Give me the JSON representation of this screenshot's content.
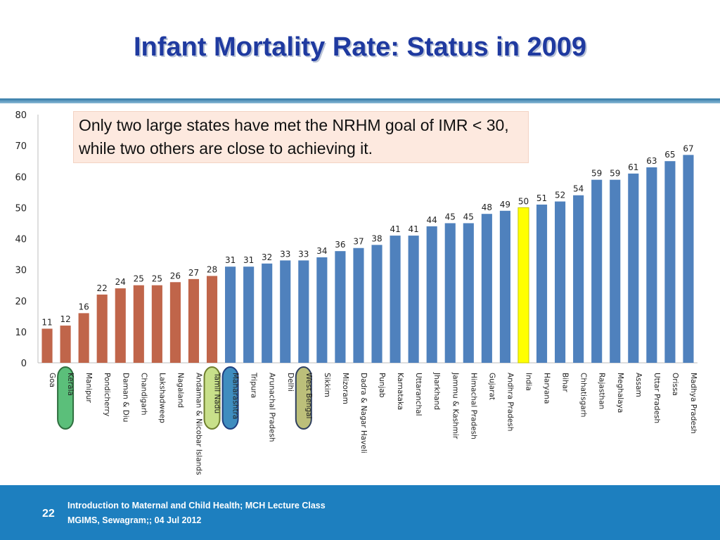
{
  "slide": {
    "title": "Infant Mortality Rate: Status in 2009",
    "annotation": "Only two large states have met the NRHM goal of IMR < 30, while two others are close to achieving it.",
    "footer_line1": "Introduction to Maternal and Child Health; MCH Lecture Class",
    "footer_line2": "MGIMS, Sewagram;; 04 Jul  2012",
    "page_number": "22"
  },
  "colors": {
    "below_goal": "#c0654a",
    "above_goal": "#4f81bd",
    "india": "#ffff00",
    "kerala_highlight": "#5bbf7a",
    "tamil_nadu_highlight": "#c8e08a",
    "maharashtra_highlight": "#3f8dbf",
    "west_bengal_highlight": "#bcbf7a",
    "title": "#1f3aa0",
    "footer": "#1d7fbf"
  },
  "chart_data": {
    "type": "bar",
    "title": "",
    "xlabel": "",
    "ylabel": "",
    "ylim": [
      0,
      80
    ],
    "yticks": [
      0,
      10,
      20,
      30,
      40,
      50,
      60,
      70,
      80
    ],
    "grid": false,
    "legend": "none",
    "categories": [
      "Goa",
      "Kerala",
      "Manipur",
      "Pondicherry",
      "Daman & Diu",
      "Chandigarh",
      "Lakshadweep",
      "Nagaland",
      "Andaman & Nicobar Islands",
      "Tamil Nadu",
      "Maharashtra",
      "Tripura",
      "Arunachal Pradesh",
      "Delhi",
      "West Bengal",
      "Sikkim",
      "Mizoram",
      "Dadra & Nagar Haveli",
      "Punjab",
      "Karnataka",
      "Uttaranchal",
      "Jharkhand",
      "Jammu & Kashmir",
      "Himachal Pradesh",
      "Gujarat",
      "Andhra Pradesh",
      "India",
      "Haryana",
      "Bihar",
      "Chhatisgarh",
      "Rajasthan",
      "Meghalaya",
      "Assam",
      "Uttar Pradesh",
      "Orissa",
      "Madhya Pradesh"
    ],
    "values": [
      11,
      12,
      16,
      22,
      24,
      25,
      25,
      26,
      27,
      28,
      31,
      31,
      32,
      33,
      33,
      34,
      36,
      37,
      38,
      41,
      41,
      44,
      45,
      45,
      48,
      49,
      50,
      51,
      52,
      54,
      59,
      59,
      61,
      63,
      65,
      67
    ],
    "bar_colors": [
      "below_goal",
      "below_goal",
      "below_goal",
      "below_goal",
      "below_goal",
      "below_goal",
      "below_goal",
      "below_goal",
      "below_goal",
      "below_goal",
      "above_goal",
      "above_goal",
      "above_goal",
      "above_goal",
      "above_goal",
      "above_goal",
      "above_goal",
      "above_goal",
      "above_goal",
      "above_goal",
      "above_goal",
      "above_goal",
      "above_goal",
      "above_goal",
      "above_goal",
      "above_goal",
      "india",
      "above_goal",
      "above_goal",
      "above_goal",
      "above_goal",
      "above_goal",
      "above_goal",
      "above_goal",
      "above_goal",
      "above_goal"
    ],
    "highlighted_labels": [
      {
        "category": "Kerala",
        "fill": "kerala_highlight",
        "stroke": "#2f6f3f"
      },
      {
        "category": "Tamil Nadu",
        "fill": "tamil_nadu_highlight",
        "stroke": "#6f7f2f"
      },
      {
        "category": "Maharashtra",
        "fill": "maharashtra_highlight",
        "stroke": "#1f3f7f"
      },
      {
        "category": "West Bengal",
        "fill": "west_bengal_highlight",
        "stroke": "#2f3f5f"
      }
    ]
  }
}
